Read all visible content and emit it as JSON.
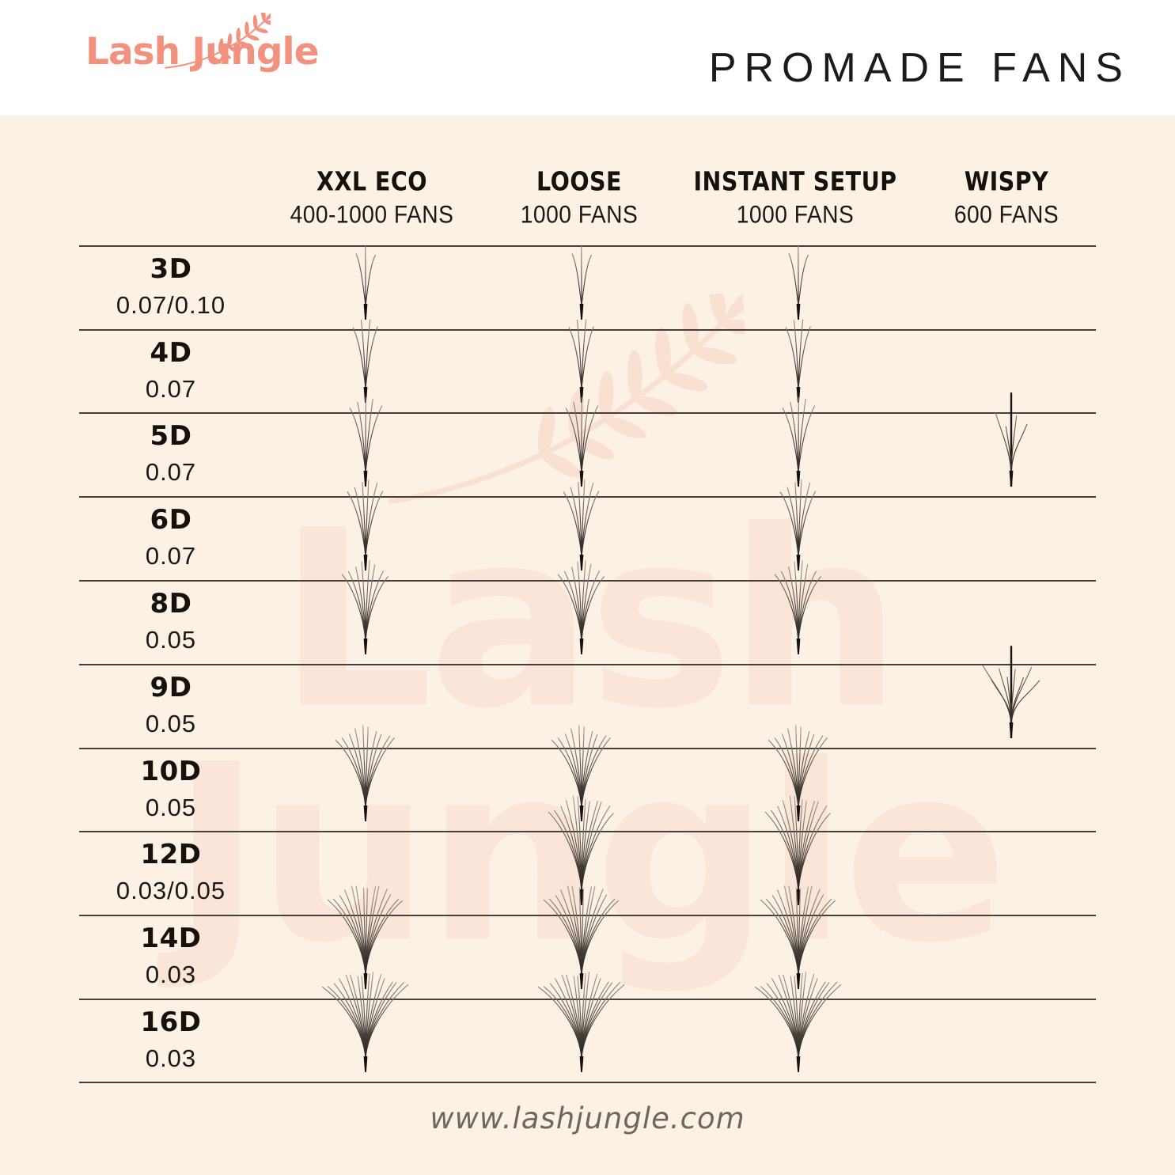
{
  "branding": {
    "logo_text": "Lash Jungle",
    "logo_color": "#f2917e"
  },
  "header": {
    "title": "PROMADE FANS"
  },
  "watermark": {
    "line1": "Lash",
    "line2": "Jungle"
  },
  "footer": {
    "url": "www.lashjungle.com"
  },
  "colors": {
    "background_cream": "#fcf1e5",
    "header_white": "#ffffff",
    "brand_coral": "#f2917e",
    "text_dark": "#17130f",
    "divider_line": "#45403a",
    "footer_gray": "#6e675f",
    "fan_stroke": "#17120d"
  },
  "table": {
    "type": "table",
    "columns": [
      {
        "label": "XXL ECO",
        "sublabel": "400-1000 FANS"
      },
      {
        "label": "LOOSE",
        "sublabel": "1000 FANS"
      },
      {
        "label": "INSTANT SETUP",
        "sublabel": "1000 FANS"
      },
      {
        "label": "WISPY",
        "sublabel": "600 FANS"
      }
    ],
    "rows": [
      {
        "label": "3D",
        "thickness": "0.07/0.10",
        "strands": 3,
        "cells": [
          true,
          true,
          true,
          false
        ]
      },
      {
        "label": "4D",
        "thickness": "0.07",
        "strands": 4,
        "cells": [
          true,
          true,
          true,
          false
        ]
      },
      {
        "label": "5D",
        "thickness": "0.07",
        "strands": 5,
        "cells": [
          true,
          true,
          true,
          true
        ]
      },
      {
        "label": "6D",
        "thickness": "0.07",
        "strands": 6,
        "cells": [
          true,
          true,
          true,
          false
        ]
      },
      {
        "label": "8D",
        "thickness": "0.05",
        "strands": 8,
        "cells": [
          true,
          true,
          true,
          false
        ]
      },
      {
        "label": "9D",
        "thickness": "0.05",
        "strands": 9,
        "cells": [
          false,
          false,
          false,
          true
        ]
      },
      {
        "label": "10D",
        "thickness": "0.05",
        "strands": 10,
        "cells": [
          true,
          true,
          true,
          false
        ]
      },
      {
        "label": "12D",
        "thickness": "0.03/0.05",
        "strands": 12,
        "cells": [
          false,
          true,
          true,
          false
        ]
      },
      {
        "label": "14D",
        "thickness": "0.03",
        "strands": 14,
        "cells": [
          true,
          true,
          true,
          false
        ]
      },
      {
        "label": "16D",
        "thickness": "0.03",
        "strands": 16,
        "cells": [
          true,
          true,
          true,
          false
        ]
      }
    ],
    "wispy_column_index": 3
  }
}
